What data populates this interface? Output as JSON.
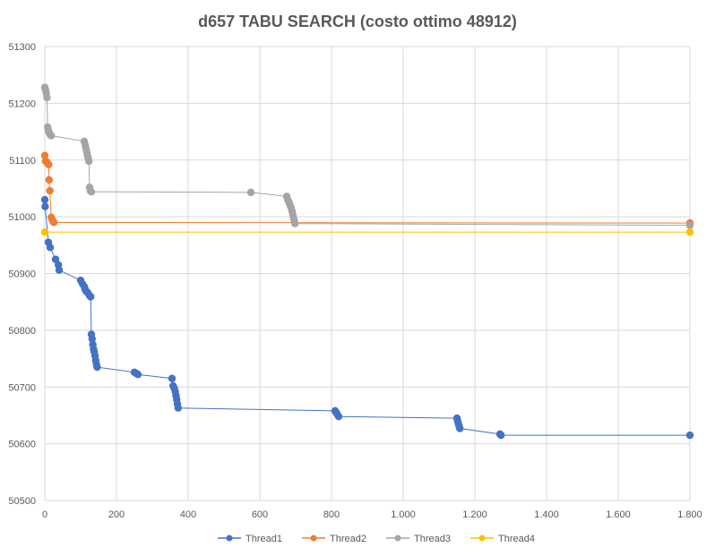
{
  "chart_data": {
    "type": "scatter",
    "title": "d657 TABU SEARCH (costo ottimo 48912)",
    "xlim": [
      0,
      1800
    ],
    "ylim": [
      50500,
      51300
    ],
    "x_ticks": [
      0,
      200,
      400,
      600,
      800,
      1000,
      1200,
      1400,
      1600,
      1800
    ],
    "x_tick_labels": [
      "0",
      "200",
      "400",
      "600",
      "800",
      "1.000",
      "1.200",
      "1.400",
      "1.600",
      "1.800"
    ],
    "y_ticks": [
      50500,
      50600,
      50700,
      50800,
      50900,
      51000,
      51100,
      51200,
      51300
    ],
    "y_tick_labels": [
      "50500",
      "50600",
      "50700",
      "50800",
      "50900",
      "51000",
      "51100",
      "51200",
      "51300"
    ],
    "grid": true,
    "legend_position": "bottom",
    "series": [
      {
        "name": "Thread1",
        "color": "#4472C4",
        "points": [
          [
            0,
            51030
          ],
          [
            1,
            51018
          ],
          [
            10,
            50955
          ],
          [
            15,
            50946
          ],
          [
            30,
            50925
          ],
          [
            38,
            50915
          ],
          [
            40,
            50906
          ],
          [
            100,
            50888
          ],
          [
            105,
            50882
          ],
          [
            110,
            50877
          ],
          [
            112,
            50873
          ],
          [
            115,
            50869
          ],
          [
            120,
            50866
          ],
          [
            125,
            50861
          ],
          [
            128,
            50859
          ],
          [
            130,
            50793
          ],
          [
            132,
            50785
          ],
          [
            134,
            50775
          ],
          [
            136,
            50767
          ],
          [
            138,
            50762
          ],
          [
            140,
            50755
          ],
          [
            142,
            50747
          ],
          [
            144,
            50740
          ],
          [
            146,
            50735
          ],
          [
            250,
            50726
          ],
          [
            255,
            50724
          ],
          [
            260,
            50722
          ],
          [
            355,
            50715
          ],
          [
            358,
            50702
          ],
          [
            361,
            50698
          ],
          [
            364,
            50692
          ],
          [
            366,
            50685
          ],
          [
            368,
            50678
          ],
          [
            370,
            50670
          ],
          [
            372,
            50663
          ],
          [
            810,
            50658
          ],
          [
            813,
            50655
          ],
          [
            816,
            50652
          ],
          [
            820,
            50648
          ],
          [
            1150,
            50645
          ],
          [
            1152,
            50640
          ],
          [
            1154,
            50635
          ],
          [
            1156,
            50631
          ],
          [
            1158,
            50627
          ],
          [
            1270,
            50617
          ],
          [
            1273,
            50615
          ],
          [
            1800,
            50615
          ]
        ]
      },
      {
        "name": "Thread2",
        "color": "#ED7D31",
        "points": [
          [
            0,
            51108
          ],
          [
            2,
            51098
          ],
          [
            5,
            51097
          ],
          [
            8,
            51094
          ],
          [
            11,
            51092
          ],
          [
            12,
            51065
          ],
          [
            14,
            51046
          ],
          [
            18,
            50999
          ],
          [
            20,
            50996
          ],
          [
            22,
            50993
          ],
          [
            25,
            50990
          ],
          [
            1800,
            50989
          ]
        ]
      },
      {
        "name": "Thread3",
        "color": "#A5A5A5",
        "points": [
          [
            0,
            51228
          ],
          [
            2,
            51224
          ],
          [
            4,
            51218
          ],
          [
            6,
            51210
          ],
          [
            8,
            51158
          ],
          [
            10,
            51152
          ],
          [
            12,
            51148
          ],
          [
            15,
            51145
          ],
          [
            18,
            51143
          ],
          [
            110,
            51133
          ],
          [
            113,
            51126
          ],
          [
            115,
            51120
          ],
          [
            117,
            51114
          ],
          [
            119,
            51108
          ],
          [
            121,
            51103
          ],
          [
            123,
            51098
          ],
          [
            125,
            51052
          ],
          [
            127,
            51046
          ],
          [
            130,
            51044
          ],
          [
            575,
            51043
          ],
          [
            675,
            51036
          ],
          [
            678,
            51030
          ],
          [
            681,
            51026
          ],
          [
            684,
            51021
          ],
          [
            687,
            51016
          ],
          [
            690,
            51010
          ],
          [
            692,
            51004
          ],
          [
            694,
            50998
          ],
          [
            696,
            50993
          ],
          [
            698,
            50988
          ],
          [
            1800,
            50985
          ]
        ]
      },
      {
        "name": "Thread4",
        "color": "#FFC000",
        "points": [
          [
            0,
            50973
          ],
          [
            1800,
            50973
          ]
        ]
      }
    ]
  }
}
